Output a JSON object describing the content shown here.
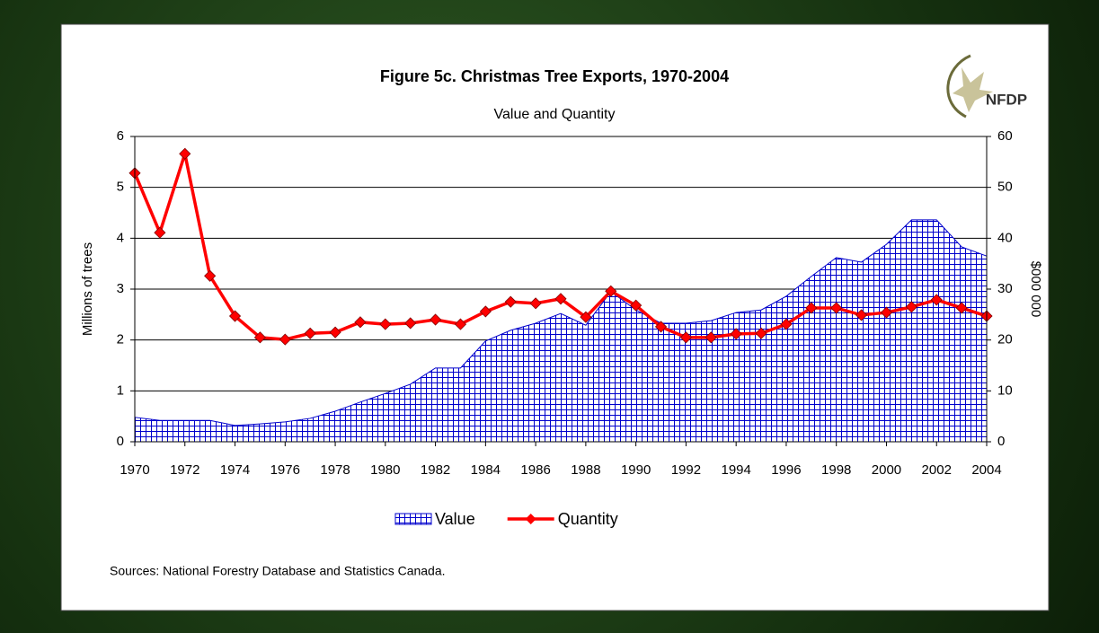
{
  "chart_data": {
    "type": "line",
    "title": "Figure 5c.  Christmas Tree Exports, 1970-2004",
    "subtitle": "Value and Quantity",
    "logo": "NFDP",
    "y_label": "Millions of trees",
    "y2_label": "$000 000",
    "source": "Sources: National Forestry Database and Statistics Canada.",
    "x": [
      1970,
      1971,
      1972,
      1973,
      1974,
      1975,
      1976,
      1977,
      1978,
      1979,
      1980,
      1981,
      1982,
      1983,
      1984,
      1985,
      1986,
      1987,
      1988,
      1989,
      1990,
      1991,
      1992,
      1993,
      1994,
      1995,
      1996,
      1997,
      1998,
      1999,
      2000,
      2001,
      2002,
      2003,
      2004
    ],
    "xlim": [
      1970,
      2004
    ],
    "xticks": [
      1970,
      1972,
      1974,
      1976,
      1978,
      1980,
      1982,
      1984,
      1986,
      1988,
      1990,
      1992,
      1994,
      1996,
      1998,
      2000,
      2002,
      2004
    ],
    "ylim": [
      0,
      6
    ],
    "yticks": [
      0,
      1,
      2,
      3,
      4,
      5,
      6
    ],
    "y2lim": [
      0,
      60
    ],
    "y2ticks": [
      0,
      10,
      20,
      30,
      40,
      50,
      60
    ],
    "grid": true,
    "series": [
      {
        "name": "Value",
        "type": "area",
        "axis": "y2",
        "color": "#0000cc",
        "values": [
          4.8,
          4.2,
          4.2,
          4.2,
          3.2,
          3.5,
          3.9,
          4.6,
          6.0,
          7.8,
          9.5,
          11.3,
          14.5,
          14.5,
          19.8,
          21.9,
          23.3,
          25.2,
          22.9,
          29.5,
          25.9,
          23.3,
          23.3,
          23.8,
          25.4,
          25.9,
          28.6,
          32.5,
          36.2,
          35.3,
          38.8,
          43.6,
          43.6,
          38.3,
          36.5
        ]
      },
      {
        "name": "Quantity",
        "type": "line",
        "color": "#ff0000",
        "values": [
          5.28,
          4.11,
          5.66,
          3.26,
          2.47,
          2.05,
          2.01,
          2.13,
          2.15,
          2.35,
          2.31,
          2.33,
          2.4,
          2.31,
          2.56,
          2.75,
          2.72,
          2.81,
          2.45,
          2.96,
          2.68,
          2.26,
          2.05,
          2.05,
          2.12,
          2.13,
          2.31,
          2.63,
          2.63,
          2.49,
          2.54,
          2.65,
          2.79,
          2.63,
          2.47
        ]
      }
    ]
  }
}
